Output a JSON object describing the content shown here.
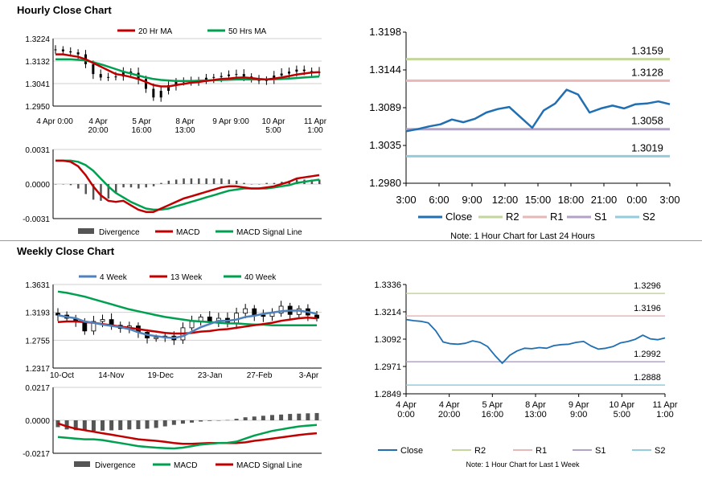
{
  "titles": {
    "hourly": "Hourly Close Chart",
    "weekly": "Weekly Close Chart"
  },
  "chart_data": [
    {
      "id": "hourly-price",
      "type": "candlestick",
      "ylim": [
        1.295,
        1.3224
      ],
      "y_ticks": [
        "1.3224",
        "1.3132",
        "1.3041",
        "1.2950"
      ],
      "x_ticks": [
        "4 Apr 0:00",
        "4 Apr\n20:00",
        "5 Apr\n16:00",
        "8 Apr\n13:00",
        "9 Apr 9:00",
        "10 Apr\n5:00",
        "11 Apr\n1:00"
      ],
      "legend": [
        "20 Hr MA",
        "50 Hrs MA"
      ],
      "colors": {
        "ma_short": "#c00000",
        "ma_long": "#00a050",
        "candle": "#000000"
      },
      "close_series": [
        1.318,
        1.3172,
        1.3168,
        1.316,
        1.312,
        1.308,
        1.3066,
        1.3068,
        1.307,
        1.309,
        1.3085,
        1.306,
        1.302,
        1.2985,
        1.3012,
        1.3035,
        1.305,
        1.3048,
        1.3052,
        1.3055,
        1.3065,
        1.3068,
        1.3072,
        1.3078,
        1.308,
        1.307,
        1.306,
        1.3052,
        1.3058,
        1.3074,
        1.3082,
        1.309,
        1.3098,
        1.3092,
        1.3085,
        1.3089
      ],
      "ma20": [
        1.316,
        1.316,
        1.3155,
        1.315,
        1.314,
        1.3125,
        1.311,
        1.3095,
        1.308,
        1.3075,
        1.3068,
        1.306,
        1.3048,
        1.3035,
        1.303,
        1.303,
        1.3035,
        1.304,
        1.3045,
        1.3048,
        1.3052,
        1.3056,
        1.306,
        1.3062,
        1.3065,
        1.3066,
        1.3064,
        1.306,
        1.3058,
        1.3062,
        1.3066,
        1.3072,
        1.3078,
        1.3082,
        1.3086,
        1.3088
      ],
      "ma50": [
        1.314,
        1.314,
        1.314,
        1.3138,
        1.3135,
        1.3128,
        1.312,
        1.311,
        1.31,
        1.309,
        1.3082,
        1.3074,
        1.3066,
        1.306,
        1.3056,
        1.3054,
        1.3052,
        1.3052,
        1.3052,
        1.3053,
        1.3054,
        1.3055,
        1.3056,
        1.3057,
        1.3058,
        1.3058,
        1.3058,
        1.3058,
        1.3058,
        1.3059,
        1.306,
        1.3062,
        1.3064,
        1.3066,
        1.3068,
        1.307
      ]
    },
    {
      "id": "hourly-macd",
      "type": "bar+line",
      "ylim": [
        -0.0031,
        0.0031
      ],
      "y_ticks": [
        "0.0031",
        "0.0000",
        "-0.0031"
      ],
      "legend": [
        "Divergence",
        "MACD",
        "MACD Signal Line"
      ],
      "colors": {
        "divergence": "#555555",
        "macd": "#c00000",
        "signal": "#00a050"
      },
      "macd": [
        0.0021,
        0.0021,
        0.002,
        0.0016,
        0.0008,
        -0.0002,
        -0.001,
        -0.0015,
        -0.0016,
        -0.0015,
        -0.0019,
        -0.0023,
        -0.0025,
        -0.0025,
        -0.0022,
        -0.0019,
        -0.0016,
        -0.0013,
        -0.0011,
        -0.0009,
        -0.0007,
        -0.0005,
        -0.0003,
        -0.0002,
        -0.0002,
        -0.0003,
        -0.0004,
        -0.0004,
        -0.0003,
        -0.0002,
        0.0,
        0.0002,
        0.0005,
        0.0006,
        0.0007,
        0.0008
      ],
      "signal": [
        0.0021,
        0.0021,
        0.0021,
        0.002,
        0.0017,
        0.0012,
        0.0005,
        -0.0002,
        -0.0008,
        -0.0012,
        -0.0016,
        -0.0019,
        -0.0022,
        -0.0023,
        -0.0023,
        -0.0022,
        -0.002,
        -0.0018,
        -0.0016,
        -0.0014,
        -0.0012,
        -0.001,
        -0.0008,
        -0.0006,
        -0.0005,
        -0.0004,
        -0.0004,
        -0.0004,
        -0.0004,
        -0.0003,
        -0.0002,
        -0.0001,
        0.0001,
        0.0002,
        0.0003,
        0.0004
      ]
    },
    {
      "id": "hourly-24h",
      "type": "line",
      "ylim": [
        1.298,
        1.3198
      ],
      "y_ticks": [
        "1.3198",
        "1.3144",
        "1.3089",
        "1.3035",
        "1.2980"
      ],
      "x_ticks": [
        "3:00",
        "6:00",
        "9:00",
        "12:00",
        "15:00",
        "18:00",
        "21:00",
        "0:00",
        "3:00"
      ],
      "close": [
        1.3055,
        1.3058,
        1.3062,
        1.3065,
        1.3072,
        1.3068,
        1.3073,
        1.3082,
        1.3087,
        1.309,
        1.3075,
        1.306,
        1.3085,
        1.3095,
        1.3115,
        1.3108,
        1.3082,
        1.3088,
        1.3092,
        1.3088,
        1.3094,
        1.3095,
        1.3098,
        1.3094
      ],
      "levels": [
        {
          "name": "R2",
          "value": 1.3159,
          "label": "1.3159",
          "color": "#c3d69b"
        },
        {
          "name": "R1",
          "value": 1.3128,
          "label": "1.3128",
          "color": "#e6b8b7"
        },
        {
          "name": "S1",
          "value": 1.3058,
          "label": "1.3058",
          "color": "#b3a2c7"
        },
        {
          "name": "S2",
          "value": 1.3019,
          "label": "1.3019",
          "color": "#93cddd"
        }
      ],
      "close_color": "#1f6fb2",
      "legend": [
        "Close",
        "R2",
        "R1",
        "S1",
        "S2"
      ],
      "note": "Note: 1 Hour Chart for Last 24 Hours"
    },
    {
      "id": "weekly-price",
      "type": "candlestick",
      "ylim": [
        1.2317,
        1.3631
      ],
      "y_ticks": [
        "1.3631",
        "1.3193",
        "1.2755",
        "1.2317"
      ],
      "x_ticks": [
        "10-Oct",
        "14-Nov",
        "19-Dec",
        "23-Jan",
        "27-Feb",
        "3-Apr"
      ],
      "legend": [
        "4 Week",
        "13 Week",
        "40 Week"
      ],
      "colors": {
        "wk4": "#4f81bd",
        "wk13": "#c00000",
        "wk40": "#00a050"
      },
      "closes": [
        1.315,
        1.31,
        1.305,
        1.29,
        1.305,
        1.308,
        1.299,
        1.294,
        1.298,
        1.288,
        1.279,
        1.28,
        1.282,
        1.276,
        1.295,
        1.305,
        1.312,
        1.304,
        1.31,
        1.302,
        1.318,
        1.325,
        1.315,
        1.313,
        1.318,
        1.329,
        1.316,
        1.325,
        1.315,
        1.31
      ],
      "wk4": [
        1.315,
        1.312,
        1.31,
        1.305,
        1.303,
        1.3,
        1.298,
        1.296,
        1.293,
        1.288,
        1.284,
        1.282,
        1.28,
        1.279,
        1.282,
        1.289,
        1.296,
        1.301,
        1.306,
        1.306,
        1.308,
        1.312,
        1.314,
        1.317,
        1.319,
        1.321,
        1.322,
        1.322,
        1.32,
        1.317
      ],
      "wk13": [
        1.304,
        1.305,
        1.305,
        1.304,
        1.303,
        1.301,
        1.299,
        1.297,
        1.295,
        1.293,
        1.291,
        1.289,
        1.287,
        1.286,
        1.286,
        1.287,
        1.289,
        1.29,
        1.292,
        1.293,
        1.295,
        1.297,
        1.299,
        1.301,
        1.303,
        1.306,
        1.308,
        1.31,
        1.311,
        1.31
      ],
      "wk40": [
        1.352,
        1.35,
        1.347,
        1.344,
        1.34,
        1.336,
        1.332,
        1.328,
        1.324,
        1.321,
        1.318,
        1.315,
        1.312,
        1.31,
        1.308,
        1.306,
        1.305,
        1.304,
        1.303,
        1.302,
        1.302,
        1.301,
        1.3,
        1.3,
        1.299,
        1.299,
        1.299,
        1.299,
        1.299,
        1.299
      ]
    },
    {
      "id": "weekly-macd",
      "type": "bar+line",
      "ylim": [
        -0.0217,
        0.0217
      ],
      "y_ticks": [
        "0.0217",
        "0.0000",
        "-0.0217"
      ],
      "legend": [
        "Divergence",
        "MACD",
        "MACD Signal Line"
      ],
      "colors": {
        "divergence": "#555555",
        "macd": "#00a050",
        "signal": "#c00000"
      },
      "divergence": [
        -0.0045,
        -0.006,
        -0.0065,
        -0.0068,
        -0.007,
        -0.0068,
        -0.0066,
        -0.0064,
        -0.006,
        -0.0058,
        -0.0055,
        -0.005,
        -0.004,
        -0.003,
        -0.0022,
        -0.0015,
        -0.0008,
        -0.0004,
        -0.0001,
        0.0002,
        0.001,
        0.002,
        0.0025,
        0.003,
        0.0035,
        0.0038,
        0.0042,
        0.0044,
        0.0046,
        0.0048
      ],
      "macd": [
        -0.011,
        -0.0115,
        -0.012,
        -0.0125,
        -0.0125,
        -0.013,
        -0.014,
        -0.015,
        -0.016,
        -0.017,
        -0.0175,
        -0.018,
        -0.0183,
        -0.0185,
        -0.018,
        -0.017,
        -0.016,
        -0.0155,
        -0.015,
        -0.0148,
        -0.014,
        -0.012,
        -0.01,
        -0.0085,
        -0.007,
        -0.006,
        -0.005,
        -0.004,
        -0.0035,
        -0.003
      ],
      "signal": [
        -0.002,
        -0.004,
        -0.0055,
        -0.0065,
        -0.0075,
        -0.0085,
        -0.0095,
        -0.0105,
        -0.0115,
        -0.0125,
        -0.013,
        -0.0135,
        -0.0142,
        -0.015,
        -0.0155,
        -0.0155,
        -0.0152,
        -0.015,
        -0.015,
        -0.015,
        -0.015,
        -0.0145,
        -0.0135,
        -0.0128,
        -0.012,
        -0.0112,
        -0.0105,
        -0.0097,
        -0.009,
        -0.0085
      ]
    },
    {
      "id": "weekly-hourly",
      "type": "line",
      "ylim": [
        1.2849,
        1.3336
      ],
      "y_ticks": [
        "1.3336",
        "1.3214",
        "1.3092",
        "1.2971",
        "1.2849"
      ],
      "x_ticks": [
        "4 Apr\n0:00",
        "4 Apr\n20:00",
        "5 Apr\n16:00",
        "8 Apr\n13:00",
        "9 Apr\n9:00",
        "10 Apr\n5:00",
        "11 Apr\n1:00"
      ],
      "close": [
        1.318,
        1.3175,
        1.3172,
        1.3165,
        1.313,
        1.308,
        1.3072,
        1.307,
        1.3074,
        1.3085,
        1.3078,
        1.306,
        1.302,
        1.2985,
        1.302,
        1.304,
        1.3052,
        1.305,
        1.3055,
        1.3052,
        1.3064,
        1.3068,
        1.307,
        1.3078,
        1.3082,
        1.3062,
        1.3048,
        1.3052,
        1.306,
        1.3076,
        1.3082,
        1.3092,
        1.311,
        1.3094,
        1.309,
        1.3098
      ],
      "levels": [
        {
          "name": "R2",
          "value": 1.3296,
          "label": "1.3296",
          "color": "#c3d69b"
        },
        {
          "name": "R1",
          "value": 1.3196,
          "label": "1.3196",
          "color": "#e6b8b7"
        },
        {
          "name": "S1",
          "value": 1.2992,
          "label": "1.2992",
          "color": "#b3a2c7"
        },
        {
          "name": "S2",
          "value": 1.2888,
          "label": "1.2888",
          "color": "#93cddd"
        }
      ],
      "close_color": "#1f6fb2",
      "legend": [
        "Close",
        "R2",
        "R1",
        "S1",
        "S2"
      ],
      "note": "Note: 1 Hour Chart for Last 1 Week"
    }
  ]
}
